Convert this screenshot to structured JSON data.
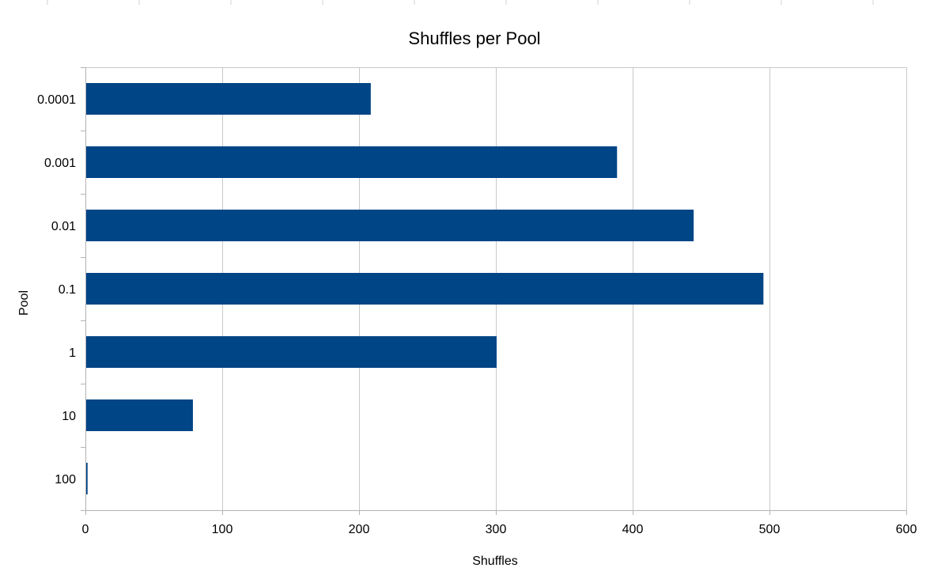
{
  "chart_data": {
    "type": "bar",
    "orientation": "horizontal",
    "title": "Shuffles per Pool",
    "xlabel": "Shuffles",
    "ylabel": "Pool",
    "categories": [
      "0.0001",
      "0.001",
      "0.01",
      "0.1",
      "1",
      "10",
      "100"
    ],
    "values": [
      208,
      388,
      444,
      495,
      300,
      78,
      1
    ],
    "xlim": [
      0,
      600
    ],
    "xticks": [
      0,
      100,
      200,
      300,
      400,
      500,
      600
    ],
    "grid": true,
    "legend": "none",
    "bar_color": "#004586"
  }
}
